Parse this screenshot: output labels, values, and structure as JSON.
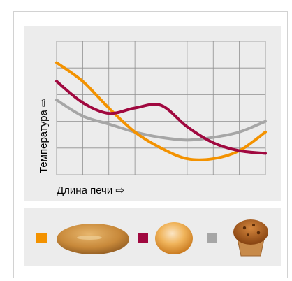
{
  "chart_data": {
    "type": "line",
    "title": "",
    "ylabel": "Температура ⇨",
    "xlabel": "Длина печи ⇨",
    "grid": true,
    "x": [
      0,
      1,
      2,
      3,
      4,
      5,
      6,
      7,
      8
    ],
    "ylim": [
      0,
      5
    ],
    "series": [
      {
        "color": "#f39200",
        "values": [
          4.2,
          3.5,
          2.5,
          1.6,
          1.0,
          0.6,
          0.6,
          0.9,
          1.6
        ]
      },
      {
        "color": "#a0083f",
        "values": [
          3.5,
          2.7,
          2.3,
          2.5,
          2.6,
          1.8,
          1.2,
          0.9,
          0.8
        ]
      },
      {
        "color": "#a6a6a6",
        "values": [
          2.8,
          2.2,
          1.9,
          1.6,
          1.4,
          1.3,
          1.4,
          1.6,
          2.0
        ]
      }
    ]
  },
  "legend": [
    {
      "color": "#f39200",
      "icon": "bread-loaf-icon"
    },
    {
      "color": "#a0083f",
      "icon": "bun-icon"
    },
    {
      "color": "#a6a6a6",
      "icon": "muffin-icon"
    }
  ]
}
